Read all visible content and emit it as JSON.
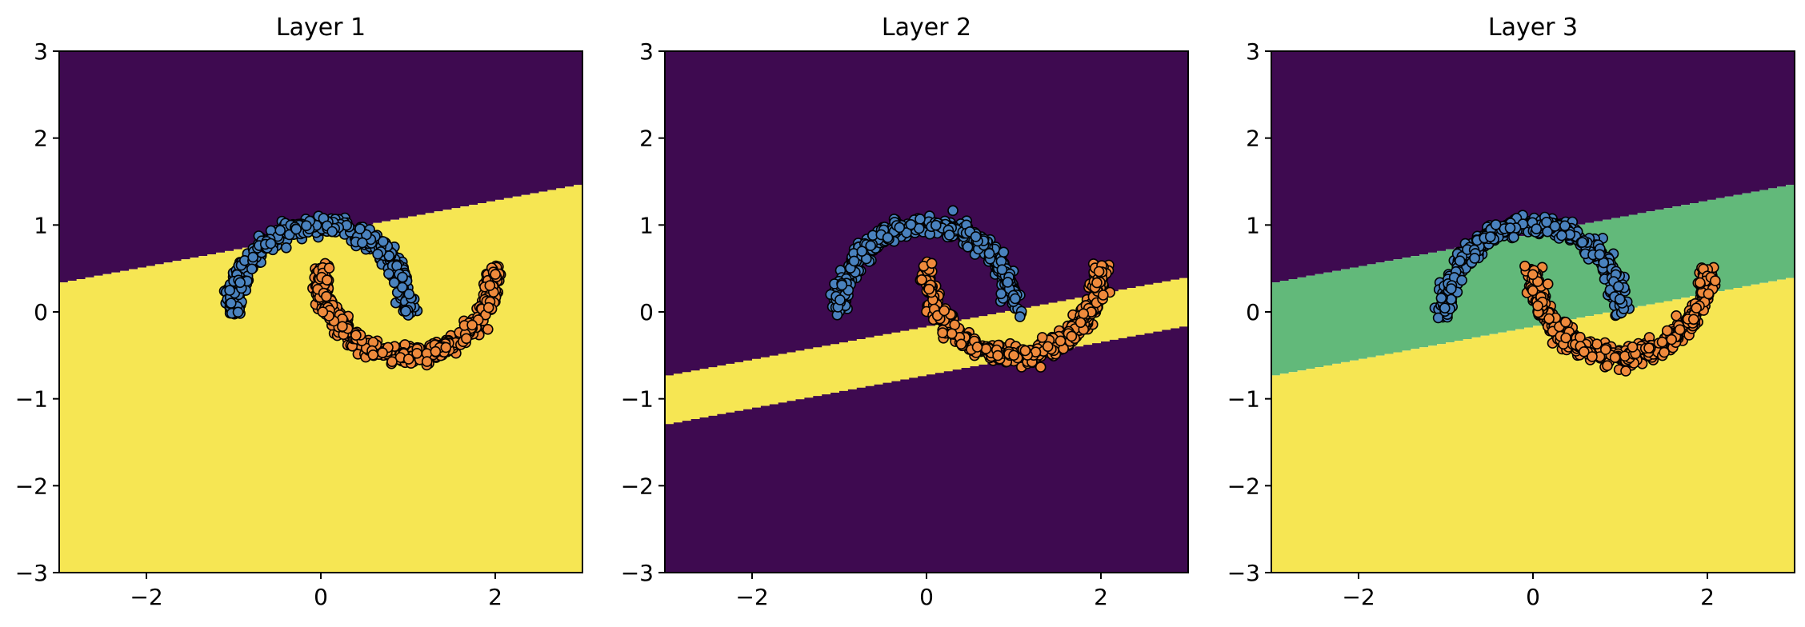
{
  "figure": {
    "colors": {
      "dark": "#3e0a50",
      "yellow": "#f6e653",
      "green": "#62b97a",
      "class0": "#4a82be",
      "class1": "#ef8a3c",
      "marker_edge": "#000000"
    }
  },
  "chart_data": [
    {
      "type": "heatmap",
      "title": "Layer 1",
      "xlim": [
        -3,
        3
      ],
      "ylim": [
        -3,
        3
      ],
      "xticks": [
        -2,
        0,
        2
      ],
      "yticks": [
        -3,
        -2,
        -1,
        0,
        1,
        2,
        3
      ],
      "xtick_labels": [
        "−2",
        "0",
        "2"
      ],
      "ytick_labels": [
        "−3",
        "−2",
        "−1",
        "0",
        "1",
        "2",
        "3"
      ],
      "grid": false,
      "regions": [
        {
          "fill": "dark",
          "rule": "above",
          "boundary": {
            "slope": 0.19,
            "intercept": 0.9
          }
        },
        {
          "fill": "yellow",
          "rule": "below",
          "boundary": {
            "slope": 0.19,
            "intercept": 0.9
          }
        }
      ],
      "scatter": [
        {
          "class": 0,
          "shape": "upper-moon",
          "center": [
            0,
            0
          ],
          "radius": 1,
          "noise": 0.05,
          "count": 500
        },
        {
          "class": 1,
          "shape": "lower-moon",
          "center": [
            1,
            0.5
          ],
          "radius": 1,
          "noise": 0.05,
          "count": 500
        }
      ]
    },
    {
      "type": "heatmap",
      "title": "Layer 2",
      "xlim": [
        -3,
        3
      ],
      "ylim": [
        -3,
        3
      ],
      "xticks": [
        -2,
        0,
        2
      ],
      "yticks": [
        -3,
        -2,
        -1,
        0,
        1,
        2,
        3
      ],
      "xtick_labels": [
        "−2",
        "0",
        "2"
      ],
      "ytick_labels": [
        "−3",
        "−2",
        "−1",
        "0",
        "1",
        "2",
        "3"
      ],
      "grid": false,
      "regions": [
        {
          "fill": "dark",
          "rule": "all"
        },
        {
          "fill": "yellow",
          "rule": "band",
          "upper": {
            "slope": 0.19,
            "intercept": -0.17
          },
          "lower": {
            "slope": 0.19,
            "intercept": -0.73
          }
        }
      ],
      "scatter": [
        {
          "class": 0,
          "shape": "upper-moon",
          "center": [
            0,
            0
          ],
          "radius": 1,
          "noise": 0.05,
          "count": 500
        },
        {
          "class": 1,
          "shape": "lower-moon",
          "center": [
            1,
            0.5
          ],
          "radius": 1,
          "noise": 0.05,
          "count": 500
        }
      ]
    },
    {
      "type": "heatmap",
      "title": "Layer 3",
      "xlim": [
        -3,
        3
      ],
      "ylim": [
        -3,
        3
      ],
      "xticks": [
        -2,
        0,
        2
      ],
      "yticks": [
        -3,
        -2,
        -1,
        0,
        1,
        2,
        3
      ],
      "xtick_labels": [
        "−2",
        "0",
        "2"
      ],
      "ytick_labels": [
        "−3",
        "−2",
        "−1",
        "0",
        "1",
        "2",
        "3"
      ],
      "grid": false,
      "regions": [
        {
          "fill": "dark",
          "rule": "above",
          "boundary": {
            "slope": 0.19,
            "intercept": 0.9
          }
        },
        {
          "fill": "green",
          "rule": "band",
          "upper": {
            "slope": 0.19,
            "intercept": 0.9
          },
          "lower": {
            "slope": 0.19,
            "intercept": -0.17
          }
        },
        {
          "fill": "yellow",
          "rule": "below",
          "boundary": {
            "slope": 0.19,
            "intercept": -0.17
          }
        }
      ],
      "scatter": [
        {
          "class": 0,
          "shape": "upper-moon",
          "center": [
            0,
            0
          ],
          "radius": 1,
          "noise": 0.05,
          "count": 500
        },
        {
          "class": 1,
          "shape": "lower-moon",
          "center": [
            1,
            0.5
          ],
          "radius": 1,
          "noise": 0.05,
          "count": 500
        }
      ]
    }
  ]
}
